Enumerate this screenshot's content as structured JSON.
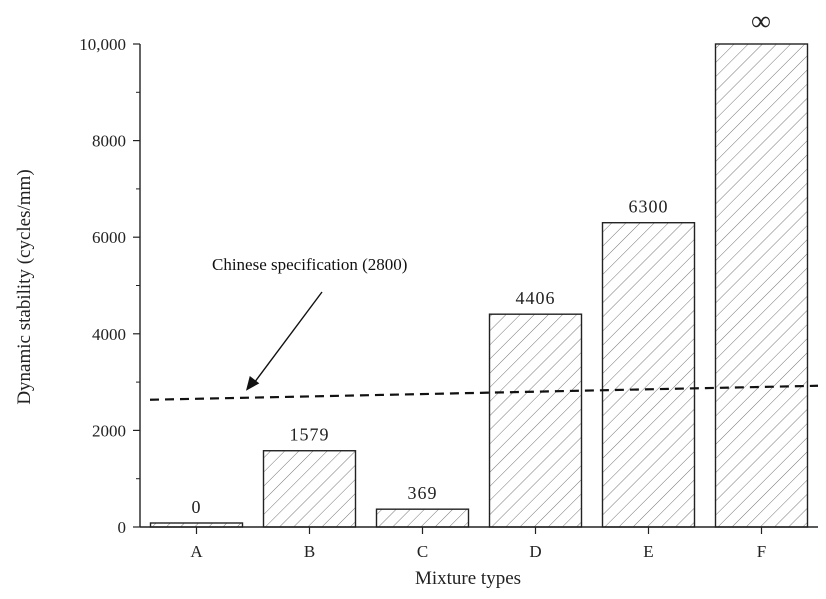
{
  "chart_data": {
    "type": "bar",
    "categories": [
      "A",
      "B",
      "C",
      "D",
      "E",
      "F"
    ],
    "values": [
      0,
      1579,
      369,
      4406,
      6300,
      10000
    ],
    "data_labels": [
      "0",
      "1579",
      "369",
      "4406",
      "6300",
      "∞"
    ],
    "xlabel": "Mixture types",
    "ylabel": "Dynamic stability (cycles/mm)",
    "ylim": [
      0,
      10000
    ],
    "yticks": [
      0,
      2000,
      4000,
      6000,
      8000,
      10000
    ],
    "ytick_labels": [
      "0",
      "2000",
      "4000",
      "6000",
      "8000",
      "10,000"
    ],
    "bar_fill": "hatched",
    "reference_line": {
      "value": 2800,
      "style": "dashed",
      "label": "Chinese specification (2800)"
    },
    "grid": false,
    "legend": "none"
  }
}
